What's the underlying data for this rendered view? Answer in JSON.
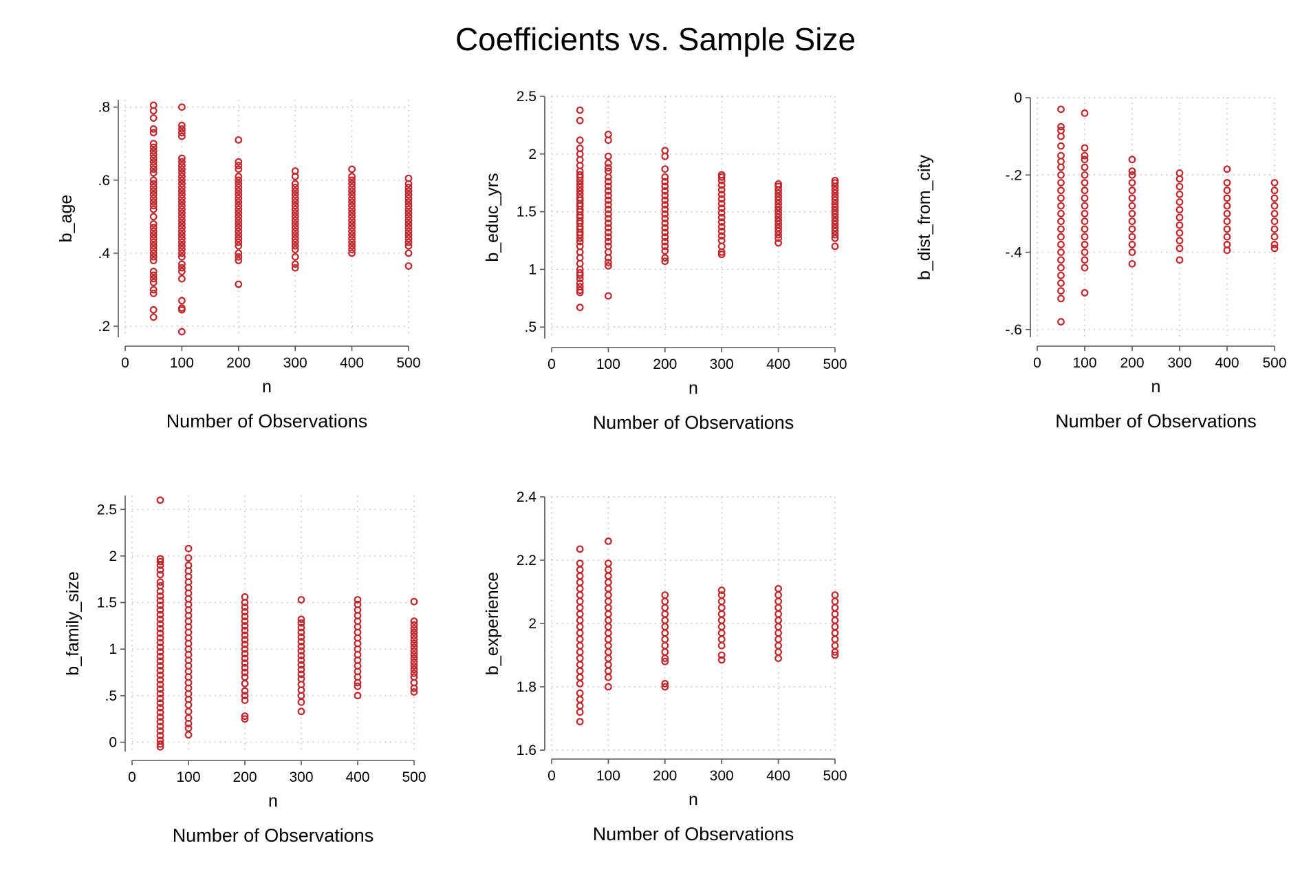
{
  "title": "Coefficients vs. Sample Size",
  "colors": {
    "marker": "#c0282d",
    "grid": "#b8b8b8",
    "axis": "#555555"
  },
  "chart_data": [
    {
      "type": "scatter",
      "xlabel": "n",
      "ylabel": "b_age",
      "note": "Number of Observations",
      "xlim": [
        0,
        500
      ],
      "xticks": [
        0,
        100,
        200,
        300,
        400,
        500
      ],
      "ylim": [
        0.17,
        0.82
      ],
      "yticks": [
        0.2,
        0.4,
        0.6,
        0.8
      ],
      "ytick_labels": [
        ".2",
        ".4",
        ".6",
        ".8"
      ],
      "grid": true,
      "series": [
        {
          "x": 50,
          "y": [
            0.805,
            0.79,
            0.77,
            0.74,
            0.73,
            0.7,
            0.69,
            0.68,
            0.67,
            0.66,
            0.65,
            0.64,
            0.63,
            0.62,
            0.6,
            0.59,
            0.58,
            0.57,
            0.56,
            0.55,
            0.54,
            0.53,
            0.52,
            0.5,
            0.48,
            0.47,
            0.46,
            0.45,
            0.44,
            0.43,
            0.42,
            0.41,
            0.4,
            0.39,
            0.38,
            0.35,
            0.34,
            0.33,
            0.32,
            0.3,
            0.29,
            0.245,
            0.225
          ]
        },
        {
          "x": 100,
          "y": [
            0.8,
            0.75,
            0.74,
            0.73,
            0.72,
            0.66,
            0.65,
            0.64,
            0.63,
            0.62,
            0.61,
            0.6,
            0.59,
            0.58,
            0.57,
            0.56,
            0.55,
            0.54,
            0.53,
            0.52,
            0.51,
            0.5,
            0.49,
            0.48,
            0.47,
            0.46,
            0.45,
            0.44,
            0.43,
            0.42,
            0.41,
            0.4,
            0.39,
            0.37,
            0.36,
            0.35,
            0.33,
            0.27,
            0.25,
            0.245,
            0.185
          ]
        },
        {
          "x": 200,
          "y": [
            0.71,
            0.65,
            0.64,
            0.63,
            0.61,
            0.6,
            0.59,
            0.58,
            0.57,
            0.56,
            0.55,
            0.54,
            0.53,
            0.52,
            0.51,
            0.5,
            0.49,
            0.48,
            0.47,
            0.46,
            0.45,
            0.44,
            0.43,
            0.42,
            0.4,
            0.39,
            0.38,
            0.315
          ]
        },
        {
          "x": 300,
          "y": [
            0.625,
            0.61,
            0.59,
            0.58,
            0.57,
            0.56,
            0.55,
            0.54,
            0.53,
            0.52,
            0.51,
            0.5,
            0.49,
            0.48,
            0.47,
            0.46,
            0.45,
            0.44,
            0.43,
            0.42,
            0.41,
            0.39,
            0.37,
            0.36
          ]
        },
        {
          "x": 400,
          "y": [
            0.63,
            0.61,
            0.6,
            0.59,
            0.58,
            0.57,
            0.56,
            0.55,
            0.54,
            0.53,
            0.52,
            0.51,
            0.5,
            0.49,
            0.48,
            0.47,
            0.46,
            0.45,
            0.44,
            0.43,
            0.42,
            0.41,
            0.4
          ]
        },
        {
          "x": 500,
          "y": [
            0.605,
            0.59,
            0.58,
            0.57,
            0.56,
            0.55,
            0.54,
            0.53,
            0.52,
            0.51,
            0.5,
            0.49,
            0.48,
            0.47,
            0.46,
            0.45,
            0.44,
            0.43,
            0.42,
            0.4,
            0.365
          ]
        }
      ]
    },
    {
      "type": "scatter",
      "xlabel": "n",
      "ylabel": "b_educ_yrs",
      "note": "Number of Observations",
      "xlim": [
        0,
        500
      ],
      "xticks": [
        0,
        100,
        200,
        300,
        400,
        500
      ],
      "ylim": [
        0.4,
        2.5
      ],
      "yticks": [
        0.5,
        1,
        1.5,
        2,
        2.5
      ],
      "ytick_labels": [
        ".5",
        "1",
        "1.5",
        "2",
        "2.5"
      ],
      "grid": true,
      "series": [
        {
          "x": 50,
          "y": [
            2.38,
            2.29,
            2.12,
            2.05,
            2.0,
            1.95,
            1.9,
            1.85,
            1.82,
            1.8,
            1.77,
            1.74,
            1.71,
            1.68,
            1.65,
            1.62,
            1.6,
            1.57,
            1.55,
            1.52,
            1.5,
            1.47,
            1.45,
            1.42,
            1.4,
            1.37,
            1.35,
            1.32,
            1.3,
            1.27,
            1.24,
            1.2,
            1.15,
            1.1,
            1.05,
            1.0,
            0.97,
            0.95,
            0.92,
            0.88,
            0.85,
            0.82,
            0.8,
            0.67
          ]
        },
        {
          "x": 100,
          "y": [
            2.17,
            2.12,
            1.98,
            1.92,
            1.88,
            1.85,
            1.8,
            1.76,
            1.72,
            1.68,
            1.64,
            1.6,
            1.56,
            1.52,
            1.48,
            1.44,
            1.4,
            1.36,
            1.32,
            1.28,
            1.24,
            1.2,
            1.15,
            1.1,
            1.06,
            1.03,
            0.77
          ]
        },
        {
          "x": 200,
          "y": [
            2.03,
            1.98,
            1.87,
            1.8,
            1.76,
            1.72,
            1.68,
            1.64,
            1.6,
            1.56,
            1.52,
            1.48,
            1.44,
            1.4,
            1.36,
            1.32,
            1.28,
            1.24,
            1.2,
            1.16,
            1.1,
            1.07
          ]
        },
        {
          "x": 300,
          "y": [
            1.82,
            1.8,
            1.77,
            1.73,
            1.69,
            1.65,
            1.61,
            1.57,
            1.53,
            1.49,
            1.45,
            1.41,
            1.37,
            1.33,
            1.29,
            1.25,
            1.2,
            1.15,
            1.13
          ]
        },
        {
          "x": 400,
          "y": [
            1.74,
            1.72,
            1.69,
            1.66,
            1.63,
            1.6,
            1.57,
            1.54,
            1.51,
            1.48,
            1.45,
            1.42,
            1.39,
            1.36,
            1.33,
            1.3,
            1.27,
            1.23
          ]
        },
        {
          "x": 500,
          "y": [
            1.77,
            1.75,
            1.72,
            1.69,
            1.66,
            1.63,
            1.6,
            1.57,
            1.54,
            1.51,
            1.48,
            1.45,
            1.42,
            1.39,
            1.36,
            1.33,
            1.3,
            1.27,
            1.2
          ]
        }
      ]
    },
    {
      "type": "scatter",
      "xlabel": "n",
      "ylabel": "b_dist_from_city",
      "note": "Number of Observations",
      "xlim": [
        0,
        500
      ],
      "xticks": [
        0,
        100,
        200,
        300,
        400,
        500
      ],
      "ylim": [
        -0.62,
        0.0
      ],
      "yticks": [
        -0.6,
        -0.4,
        -0.2,
        0
      ],
      "ytick_labels": [
        "-.6",
        "-.4",
        "-.2",
        "0"
      ],
      "grid": true,
      "series": [
        {
          "x": 50,
          "y": [
            -0.03,
            -0.075,
            -0.085,
            -0.1,
            -0.125,
            -0.15,
            -0.165,
            -0.18,
            -0.2,
            -0.22,
            -0.24,
            -0.26,
            -0.28,
            -0.3,
            -0.32,
            -0.34,
            -0.36,
            -0.38,
            -0.4,
            -0.42,
            -0.44,
            -0.46,
            -0.48,
            -0.5,
            -0.52,
            -0.58
          ]
        },
        {
          "x": 100,
          "y": [
            -0.04,
            -0.13,
            -0.15,
            -0.16,
            -0.18,
            -0.2,
            -0.22,
            -0.24,
            -0.26,
            -0.28,
            -0.3,
            -0.32,
            -0.34,
            -0.36,
            -0.38,
            -0.4,
            -0.42,
            -0.44,
            -0.505
          ]
        },
        {
          "x": 200,
          "y": [
            -0.16,
            -0.19,
            -0.2,
            -0.22,
            -0.24,
            -0.26,
            -0.28,
            -0.3,
            -0.32,
            -0.34,
            -0.36,
            -0.38,
            -0.4,
            -0.43
          ]
        },
        {
          "x": 300,
          "y": [
            -0.195,
            -0.21,
            -0.23,
            -0.25,
            -0.27,
            -0.29,
            -0.31,
            -0.33,
            -0.35,
            -0.37,
            -0.39,
            -0.42
          ]
        },
        {
          "x": 400,
          "y": [
            -0.185,
            -0.22,
            -0.24,
            -0.26,
            -0.28,
            -0.3,
            -0.32,
            -0.34,
            -0.36,
            -0.38,
            -0.395
          ]
        },
        {
          "x": 500,
          "y": [
            -0.22,
            -0.24,
            -0.26,
            -0.28,
            -0.3,
            -0.32,
            -0.34,
            -0.36,
            -0.38,
            -0.39
          ]
        }
      ]
    },
    {
      "type": "scatter",
      "xlabel": "n",
      "ylabel": "b_family_size",
      "note": "Number of Observations",
      "xlim": [
        0,
        500
      ],
      "xticks": [
        0,
        100,
        200,
        300,
        400,
        500
      ],
      "ylim": [
        -0.1,
        2.65
      ],
      "yticks": [
        0,
        0.5,
        1,
        1.5,
        2,
        2.5
      ],
      "ytick_labels": [
        "0",
        ".5",
        "1",
        "1.5",
        "2",
        "2.5"
      ],
      "grid": true,
      "series": [
        {
          "x": 50,
          "y": [
            2.6,
            1.97,
            1.94,
            1.9,
            1.85,
            1.8,
            1.72,
            1.68,
            1.62,
            1.57,
            1.52,
            1.47,
            1.42,
            1.37,
            1.32,
            1.27,
            1.22,
            1.17,
            1.12,
            1.07,
            1.02,
            0.97,
            0.92,
            0.87,
            0.82,
            0.77,
            0.72,
            0.67,
            0.62,
            0.57,
            0.52,
            0.47,
            0.42,
            0.37,
            0.32,
            0.27,
            0.22,
            0.17,
            0.12,
            0.07,
            0.02,
            -0.02,
            -0.05
          ]
        },
        {
          "x": 100,
          "y": [
            2.08,
            1.98,
            1.9,
            1.84,
            1.78,
            1.72,
            1.66,
            1.6,
            1.54,
            1.48,
            1.42,
            1.36,
            1.3,
            1.24,
            1.18,
            1.12,
            1.06,
            1.0,
            0.94,
            0.88,
            0.82,
            0.76,
            0.7,
            0.64,
            0.58,
            0.52,
            0.46,
            0.4,
            0.33,
            0.26,
            0.2,
            0.15,
            0.08
          ]
        },
        {
          "x": 200,
          "y": [
            1.56,
            1.5,
            1.45,
            1.4,
            1.35,
            1.3,
            1.25,
            1.2,
            1.15,
            1.1,
            1.05,
            1.0,
            0.95,
            0.9,
            0.85,
            0.8,
            0.75,
            0.7,
            0.63,
            0.55,
            0.5,
            0.45,
            0.28,
            0.25
          ]
        },
        {
          "x": 300,
          "y": [
            1.53,
            1.32,
            1.28,
            1.23,
            1.18,
            1.13,
            1.08,
            1.03,
            0.98,
            0.93,
            0.88,
            0.83,
            0.78,
            0.73,
            0.68,
            0.62,
            0.56,
            0.5,
            0.43,
            0.33
          ]
        },
        {
          "x": 400,
          "y": [
            1.53,
            1.48,
            1.42,
            1.36,
            1.3,
            1.24,
            1.18,
            1.12,
            1.06,
            1.0,
            0.94,
            0.88,
            0.82,
            0.76,
            0.7,
            0.64,
            0.6,
            0.5
          ]
        },
        {
          "x": 500,
          "y": [
            1.51,
            1.3,
            1.26,
            1.22,
            1.18,
            1.14,
            1.1,
            1.06,
            1.02,
            0.98,
            0.94,
            0.9,
            0.86,
            0.82,
            0.78,
            0.74,
            0.7,
            0.64,
            0.58,
            0.54
          ]
        }
      ]
    },
    {
      "type": "scatter",
      "xlabel": "n",
      "ylabel": "b_experience",
      "note": "Number of Observations",
      "xlim": [
        0,
        500
      ],
      "xticks": [
        0,
        100,
        200,
        300,
        400,
        500
      ],
      "ylim": [
        1.6,
        2.4
      ],
      "yticks": [
        1.6,
        1.8,
        2,
        2.2,
        2.4
      ],
      "ytick_labels": [
        "1.6",
        "1.8",
        "2",
        "2.2",
        "2.4"
      ],
      "grid": true,
      "series": [
        {
          "x": 50,
          "y": [
            2.235,
            2.19,
            2.17,
            2.15,
            2.13,
            2.11,
            2.09,
            2.07,
            2.05,
            2.03,
            2.01,
            1.99,
            1.97,
            1.95,
            1.93,
            1.91,
            1.89,
            1.87,
            1.85,
            1.83,
            1.81,
            1.78,
            1.76,
            1.74,
            1.72,
            1.69
          ]
        },
        {
          "x": 100,
          "y": [
            2.26,
            2.19,
            2.17,
            2.15,
            2.13,
            2.11,
            2.09,
            2.07,
            2.05,
            2.03,
            2.01,
            1.99,
            1.97,
            1.95,
            1.93,
            1.91,
            1.89,
            1.87,
            1.85,
            1.83,
            1.8
          ]
        },
        {
          "x": 200,
          "y": [
            2.09,
            2.07,
            2.05,
            2.03,
            2.01,
            1.99,
            1.97,
            1.95,
            1.93,
            1.91,
            1.89,
            1.88,
            1.81,
            1.8
          ]
        },
        {
          "x": 300,
          "y": [
            2.105,
            2.09,
            2.07,
            2.05,
            2.03,
            2.01,
            1.99,
            1.97,
            1.95,
            1.93,
            1.9,
            1.885
          ]
        },
        {
          "x": 400,
          "y": [
            2.11,
            2.09,
            2.07,
            2.05,
            2.03,
            2.01,
            1.99,
            1.97,
            1.95,
            1.93,
            1.91,
            1.89
          ]
        },
        {
          "x": 500,
          "y": [
            2.09,
            2.07,
            2.05,
            2.03,
            2.01,
            1.99,
            1.97,
            1.95,
            1.93,
            1.91,
            1.9
          ]
        }
      ]
    }
  ]
}
